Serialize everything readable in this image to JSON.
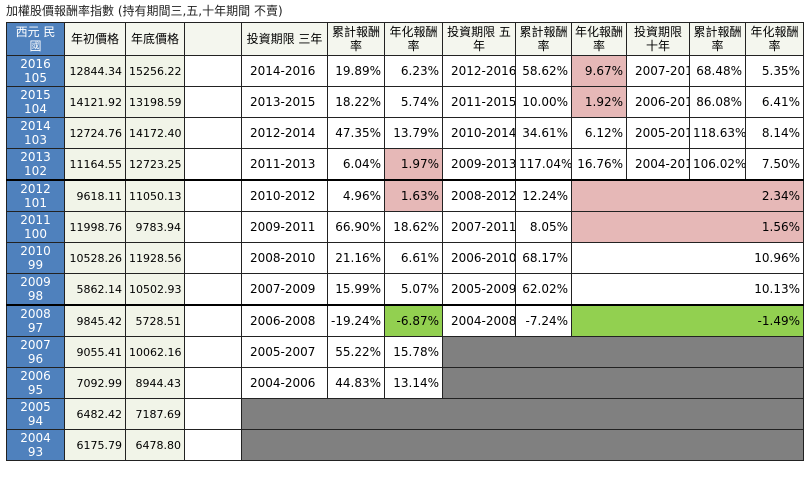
{
  "title": "加權股價報酬率指數 (持有期間三,五,十年期間 不賣)",
  "headers": {
    "year": "西元 民國",
    "open": "年初價格",
    "close": "年底價格",
    "p3": "投資期限 三年",
    "cum3": "累計報酬率",
    "ann3": "年化報酬率",
    "p5": "投資期限 五年",
    "cum5": "累計報酬率",
    "ann5": "年化報酬率",
    "p10": "投資期限 十年",
    "cum10": "累計報酬率",
    "ann10": "年化報酬率"
  },
  "rows": [
    {
      "year": "2016",
      "roc": "105",
      "open": "12844.34",
      "close": "15256.22",
      "p3": "2014-2016",
      "cum3": "19.89%",
      "ann3": "6.23%",
      "p5": "2012-2016",
      "cum5": "58.62%",
      "ann5": "9.67%",
      "p10": "2007-2016",
      "cum10": "68.48%",
      "ann10": "5.35%"
    },
    {
      "year": "2015",
      "roc": "104",
      "open": "14121.92",
      "close": "13198.59",
      "p3": "2013-2015",
      "cum3": "18.22%",
      "ann3": "5.74%",
      "p5": "2011-2015",
      "cum5": "10.00%",
      "ann5": "1.92%",
      "p10": "2006-2015",
      "cum10": "86.08%",
      "ann10": "6.41%"
    },
    {
      "year": "2014",
      "roc": "103",
      "open": "12724.76",
      "close": "14172.40",
      "p3": "2012-2014",
      "cum3": "47.35%",
      "ann3": "13.79%",
      "p5": "2010-2014",
      "cum5": "34.61%",
      "ann5": "6.12%",
      "p10": "2005-2014",
      "cum10": "118.63%",
      "ann10": "8.14%"
    },
    {
      "year": "2013",
      "roc": "102",
      "open": "11164.55",
      "close": "12723.25",
      "p3": "2011-2013",
      "cum3": "6.04%",
      "ann3": "1.97%",
      "p5": "2009-2013",
      "cum5": "117.04%",
      "ann5": "16.76%",
      "p10": "2004-2013",
      "cum10": "106.02%",
      "ann10": "7.50%"
    },
    {
      "year": "2012",
      "roc": "101",
      "open": "9618.11",
      "close": "11050.13",
      "p3": "2010-2012",
      "cum3": "4.96%",
      "ann3": "1.63%",
      "p5": "2008-2012",
      "cum5": "12.24%",
      "ann5": "2.34%"
    },
    {
      "year": "2011",
      "roc": "100",
      "open": "11998.76",
      "close": "9783.94",
      "p3": "2009-2011",
      "cum3": "66.90%",
      "ann3": "18.62%",
      "p5": "2007-2011",
      "cum5": "8.05%",
      "ann5": "1.56%"
    },
    {
      "year": "2010",
      "roc": "99",
      "open": "10528.26",
      "close": "11928.56",
      "p3": "2008-2010",
      "cum3": "21.16%",
      "ann3": "6.61%",
      "p5": "2006-2010",
      "cum5": "68.17%",
      "ann5": "10.96%"
    },
    {
      "year": "2009",
      "roc": "98",
      "open": "5862.14",
      "close": "10502.93",
      "p3": "2007-2009",
      "cum3": "15.99%",
      "ann3": "5.07%",
      "p5": "2005-2009",
      "cum5": "62.02%",
      "ann5": "10.13%"
    },
    {
      "year": "2008",
      "roc": "97",
      "open": "9845.42",
      "close": "5728.51",
      "p3": "2006-2008",
      "cum3": "-19.24%",
      "ann3": "-6.87%",
      "p5": "2004-2008",
      "cum5": "-7.24%",
      "ann5": "-1.49%"
    },
    {
      "year": "2007",
      "roc": "96",
      "open": "9055.41",
      "close": "10062.16",
      "p3": "2005-2007",
      "cum3": "55.22%",
      "ann3": "15.78%"
    },
    {
      "year": "2006",
      "roc": "95",
      "open": "7092.99",
      "close": "8944.43",
      "p3": "2004-2006",
      "cum3": "44.83%",
      "ann3": "13.14%"
    },
    {
      "year": "2005",
      "roc": "94",
      "open": "6482.42",
      "close": "7187.69"
    },
    {
      "year": "2004",
      "roc": "93",
      "open": "6175.79",
      "close": "6478.80"
    }
  ],
  "colors": {
    "year_cell": "#4f81bd",
    "low_return": "#e6b8b7",
    "negative_return": "#92d050",
    "empty_area": "#808080"
  }
}
